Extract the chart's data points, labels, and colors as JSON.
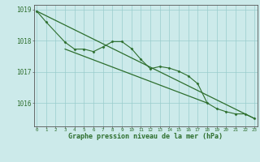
{
  "title": "Graphe pression niveau de la mer (hPa)",
  "bg_color": "#cceaea",
  "grid_color": "#99cccc",
  "line_color": "#2d6e2d",
  "y_jagged": [
    1018.95,
    1018.6,
    1017.95,
    1017.73,
    1017.73,
    1017.65,
    1017.8,
    1017.97,
    1017.97,
    1017.75,
    1017.4,
    1017.1,
    1017.17,
    1017.12,
    1017.02,
    1016.87,
    1016.62,
    1016.0,
    1015.82,
    1015.72,
    1015.65,
    1015.65,
    1015.5
  ],
  "x_jagged": [
    0,
    1,
    3,
    4,
    5,
    6,
    7,
    8,
    9,
    10,
    11,
    12,
    13,
    14,
    15,
    16,
    17,
    18,
    19,
    20,
    21,
    22,
    23
  ],
  "trend1_x": [
    0,
    23
  ],
  "trend1_y": [
    1018.95,
    1015.5
  ],
  "trend2_x": [
    3,
    18
  ],
  "trend2_y": [
    1017.73,
    1016.0
  ],
  "ylim": [
    1015.25,
    1019.15
  ],
  "xlim": [
    -0.3,
    23.3
  ],
  "yticks": [
    1016,
    1017,
    1018,
    1019
  ],
  "xticks": [
    0,
    1,
    2,
    3,
    4,
    5,
    6,
    7,
    8,
    9,
    10,
    11,
    12,
    13,
    14,
    15,
    16,
    17,
    18,
    19,
    20,
    21,
    22,
    23
  ]
}
